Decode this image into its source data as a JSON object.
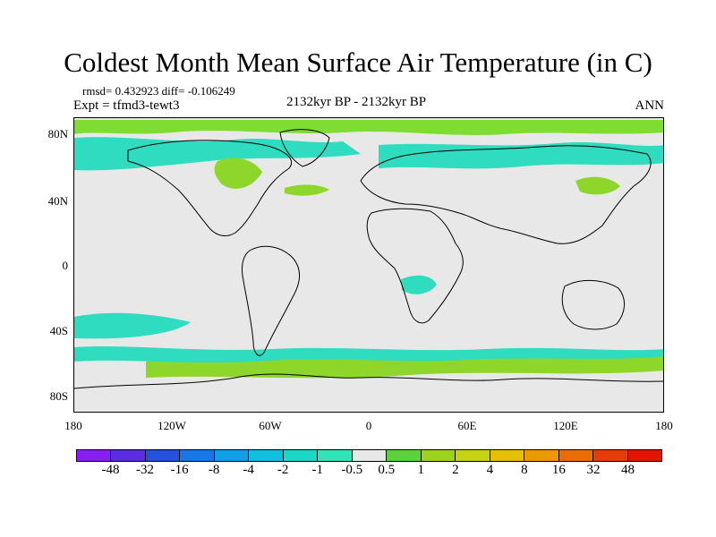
{
  "header": {
    "title": "Coldest Month Mean Surface Air Temperature (in C)",
    "stats": "rmsd= 0.432923 diff= -0.106249",
    "experiment": "Expt = tfmd3-tewt3",
    "period": "2132kyr BP - 2132kyr BP",
    "season": "ANN"
  },
  "axes": {
    "lat_ticks": [
      "80N",
      "40N",
      "0",
      "40S",
      "80S"
    ],
    "lon_ticks": [
      "180",
      "120W",
      "60W",
      "0",
      "60E",
      "120E",
      "180"
    ]
  },
  "legend": {
    "labels": [
      "-48",
      "-32",
      "-16",
      "-8",
      "-4",
      "-2",
      "-1",
      "-0.5",
      "0.5",
      "1",
      "2",
      "4",
      "8",
      "16",
      "32",
      "48"
    ],
    "colors": [
      "#8a1df0",
      "#5a2ee0",
      "#2352dd",
      "#1a78e6",
      "#10a0e6",
      "#10c0e0",
      "#1ad8c8",
      "#30e4b8",
      "#e8e8e8",
      "#5ad23c",
      "#9ed21e",
      "#c8d214",
      "#e6c000",
      "#e89a00",
      "#e86e00",
      "#e63c0a",
      "#e41400"
    ]
  }
}
